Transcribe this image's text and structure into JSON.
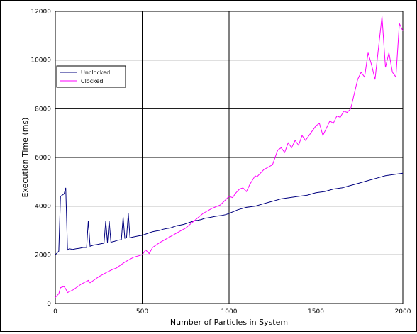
{
  "chart_data": {
    "type": "line",
    "title": "",
    "xlabel": "Number of Particles in System",
    "ylabel": "Execution Time (ms)",
    "xlim": [
      0,
      2000
    ],
    "ylim": [
      0,
      12000
    ],
    "xticks": [
      0,
      500,
      1000,
      1500,
      2000
    ],
    "yticks": [
      0,
      2000,
      4000,
      6000,
      8000,
      10000,
      12000
    ],
    "grid": true,
    "legend_position": "upper-left",
    "series": [
      {
        "name": "Unclocked",
        "color": "#00007f",
        "x": [
          0,
          20,
          30,
          50,
          60,
          70,
          80,
          100,
          120,
          140,
          160,
          180,
          190,
          200,
          220,
          240,
          260,
          280,
          290,
          300,
          310,
          320,
          340,
          360,
          380,
          390,
          400,
          410,
          420,
          430,
          440,
          460,
          480,
          500,
          520,
          540,
          560,
          580,
          600,
          620,
          640,
          660,
          680,
          700,
          720,
          740,
          760,
          780,
          800,
          820,
          840,
          860,
          880,
          900,
          920,
          940,
          960,
          980,
          1000,
          1050,
          1100,
          1150,
          1200,
          1250,
          1300,
          1350,
          1400,
          1450,
          1500,
          1550,
          1600,
          1650,
          1700,
          1750,
          1800,
          1850,
          1900,
          1950,
          2000
        ],
        "y": [
          2000,
          2150,
          4400,
          4500,
          4750,
          2200,
          2250,
          2220,
          2250,
          2270,
          2300,
          2300,
          3400,
          2350,
          2400,
          2420,
          2450,
          2480,
          3400,
          2500,
          3400,
          2520,
          2550,
          2600,
          2620,
          3550,
          2680,
          2700,
          3700,
          2700,
          2720,
          2750,
          2780,
          2800,
          2850,
          2900,
          2950,
          2980,
          3000,
          3050,
          3080,
          3100,
          3150,
          3200,
          3220,
          3250,
          3300,
          3350,
          3400,
          3420,
          3450,
          3500,
          3520,
          3550,
          3580,
          3600,
          3620,
          3650,
          3700,
          3850,
          3950,
          4000,
          4100,
          4200,
          4300,
          4350,
          4400,
          4450,
          4550,
          4600,
          4700,
          4750,
          4850,
          4950,
          5050,
          5150,
          5250,
          5300,
          5350
        ]
      },
      {
        "name": "Clocked",
        "color": "#ff00ff",
        "x": [
          0,
          20,
          30,
          50,
          60,
          70,
          100,
          150,
          190,
          200,
          250,
          300,
          330,
          350,
          400,
          450,
          500,
          520,
          540,
          560,
          600,
          650,
          700,
          750,
          800,
          850,
          900,
          950,
          1000,
          1020,
          1040,
          1060,
          1080,
          1100,
          1120,
          1150,
          1160,
          1200,
          1250,
          1260,
          1280,
          1300,
          1320,
          1340,
          1360,
          1380,
          1400,
          1420,
          1440,
          1460,
          1480,
          1500,
          1520,
          1540,
          1560,
          1580,
          1600,
          1620,
          1640,
          1660,
          1680,
          1700,
          1720,
          1740,
          1760,
          1780,
          1800,
          1820,
          1840,
          1860,
          1880,
          1900,
          1920,
          1940,
          1960,
          1980,
          2000
        ],
        "y": [
          250,
          400,
          650,
          700,
          600,
          450,
          550,
          800,
          950,
          850,
          1100,
          1300,
          1400,
          1450,
          1700,
          1900,
          2000,
          2200,
          2050,
          2300,
          2500,
          2700,
          2900,
          3100,
          3400,
          3700,
          3900,
          4050,
          4400,
          4350,
          4550,
          4700,
          4750,
          4600,
          4900,
          5250,
          5200,
          5500,
          5700,
          5900,
          6300,
          6400,
          6200,
          6600,
          6400,
          6700,
          6500,
          6900,
          6700,
          6900,
          7100,
          7300,
          7400,
          6900,
          7200,
          7500,
          7400,
          7700,
          7650,
          7900,
          7850,
          8000,
          8600,
          9200,
          9500,
          9300,
          10300,
          9800,
          9200,
          10500,
          11800,
          9700,
          10300,
          9500,
          9300,
          11500,
          11200
        ]
      }
    ]
  }
}
